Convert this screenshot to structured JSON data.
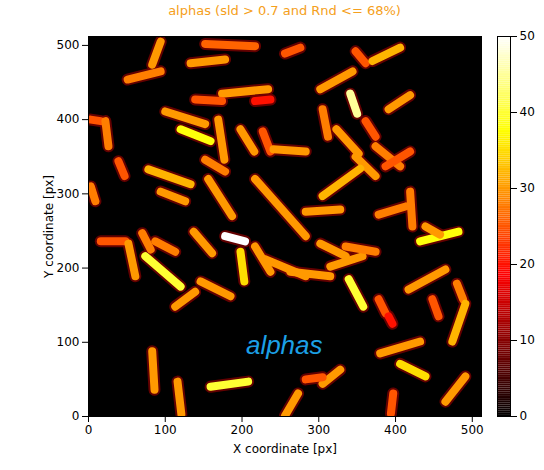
{
  "chart_data": {
    "type": "heatmap",
    "title": "alphas (sld > 0.7 and Rnd <= 68%)",
    "xlabel": "X coordinate [px]",
    "ylabel": "Y coordinate [px]",
    "xlim": [
      0,
      512
    ],
    "ylim": [
      0,
      512
    ],
    "xticks": [
      0,
      100,
      200,
      300,
      400,
      500
    ],
    "yticks": [
      0,
      100,
      200,
      300,
      400,
      500
    ],
    "colorbar": {
      "range": [
        0,
        50
      ],
      "ticks": [
        0,
        10,
        20,
        30,
        40,
        50
      ]
    },
    "annotations": [
      {
        "text": "alphas",
        "x": 255,
        "y": 95,
        "color": "#1ca0e6"
      }
    ],
    "tracks": [
      {
        "x1": 94,
        "y1": 505,
        "x2": 83,
        "y2": 474,
        "value": 30
      },
      {
        "x1": 51,
        "y1": 454,
        "x2": 94,
        "y2": 465,
        "value": 28
      },
      {
        "x1": 133,
        "y1": 476,
        "x2": 178,
        "y2": 481,
        "value": 30
      },
      {
        "x1": 152,
        "y1": 502,
        "x2": 217,
        "y2": 499,
        "value": 26
      },
      {
        "x1": 256,
        "y1": 489,
        "x2": 276,
        "y2": 497,
        "value": 25
      },
      {
        "x1": 348,
        "y1": 492,
        "x2": 361,
        "y2": 476,
        "value": 25
      },
      {
        "x1": 370,
        "y1": 479,
        "x2": 406,
        "y2": 497,
        "value": 32
      },
      {
        "x1": 302,
        "y1": 441,
        "x2": 344,
        "y2": 465,
        "value": 30
      },
      {
        "x1": 174,
        "y1": 435,
        "x2": 234,
        "y2": 441,
        "value": 30
      },
      {
        "x1": 139,
        "y1": 427,
        "x2": 174,
        "y2": 425,
        "value": 25
      },
      {
        "x1": 217,
        "y1": 425,
        "x2": 237,
        "y2": 427,
        "value": 20
      },
      {
        "x1": 391,
        "y1": 414,
        "x2": 419,
        "y2": 433,
        "value": 30
      },
      {
        "x1": 341,
        "y1": 435,
        "x2": 350,
        "y2": 408,
        "value": 45
      },
      {
        "x1": 3,
        "y1": 400,
        "x2": 16,
        "y2": 398,
        "value": 25
      },
      {
        "x1": 22,
        "y1": 398,
        "x2": 26,
        "y2": 364,
        "value": 28
      },
      {
        "x1": 100,
        "y1": 411,
        "x2": 152,
        "y2": 394,
        "value": 30
      },
      {
        "x1": 120,
        "y1": 387,
        "x2": 159,
        "y2": 371,
        "value": 38
      },
      {
        "x1": 169,
        "y1": 400,
        "x2": 177,
        "y2": 346,
        "value": 30
      },
      {
        "x1": 198,
        "y1": 387,
        "x2": 216,
        "y2": 357,
        "value": 30
      },
      {
        "x1": 227,
        "y1": 384,
        "x2": 237,
        "y2": 357,
        "value": 25
      },
      {
        "x1": 241,
        "y1": 360,
        "x2": 283,
        "y2": 357,
        "value": 30
      },
      {
        "x1": 305,
        "y1": 414,
        "x2": 312,
        "y2": 377,
        "value": 28
      },
      {
        "x1": 323,
        "y1": 387,
        "x2": 352,
        "y2": 354,
        "value": 30
      },
      {
        "x1": 361,
        "y1": 398,
        "x2": 374,
        "y2": 377,
        "value": 25
      },
      {
        "x1": 374,
        "y1": 364,
        "x2": 406,
        "y2": 337,
        "value": 28
      },
      {
        "x1": 348,
        "y1": 350,
        "x2": 374,
        "y2": 324,
        "value": 30
      },
      {
        "x1": 387,
        "y1": 337,
        "x2": 419,
        "y2": 357,
        "value": 25
      },
      {
        "x1": 3,
        "y1": 310,
        "x2": 9,
        "y2": 290,
        "value": 28
      },
      {
        "x1": 39,
        "y1": 344,
        "x2": 47,
        "y2": 324,
        "value": 25
      },
      {
        "x1": 78,
        "y1": 333,
        "x2": 133,
        "y2": 313,
        "value": 32
      },
      {
        "x1": 94,
        "y1": 303,
        "x2": 126,
        "y2": 290,
        "value": 30
      },
      {
        "x1": 156,
        "y1": 320,
        "x2": 187,
        "y2": 270,
        "value": 30
      },
      {
        "x1": 152,
        "y1": 346,
        "x2": 178,
        "y2": 330,
        "value": 28
      },
      {
        "x1": 217,
        "y1": 320,
        "x2": 283,
        "y2": 243,
        "value": 30
      },
      {
        "x1": 283,
        "y1": 276,
        "x2": 328,
        "y2": 279,
        "value": 30
      },
      {
        "x1": 305,
        "y1": 297,
        "x2": 354,
        "y2": 334,
        "value": 32
      },
      {
        "x1": 378,
        "y1": 272,
        "x2": 413,
        "y2": 283,
        "value": 28
      },
      {
        "x1": 419,
        "y1": 303,
        "x2": 422,
        "y2": 256,
        "value": 28
      },
      {
        "x1": 432,
        "y1": 236,
        "x2": 482,
        "y2": 249,
        "value": 38
      },
      {
        "x1": 439,
        "y1": 256,
        "x2": 458,
        "y2": 245,
        "value": 30
      },
      {
        "x1": 16,
        "y1": 236,
        "x2": 48,
        "y2": 236,
        "value": 25
      },
      {
        "x1": 52,
        "y1": 233,
        "x2": 61,
        "y2": 189,
        "value": 30
      },
      {
        "x1": 70,
        "y1": 247,
        "x2": 81,
        "y2": 225,
        "value": 28
      },
      {
        "x1": 74,
        "y1": 216,
        "x2": 120,
        "y2": 175,
        "value": 40
      },
      {
        "x1": 87,
        "y1": 236,
        "x2": 113,
        "y2": 222,
        "value": 28
      },
      {
        "x1": 137,
        "y1": 249,
        "x2": 161,
        "y2": 220,
        "value": 30
      },
      {
        "x1": 178,
        "y1": 243,
        "x2": 204,
        "y2": 236,
        "value": 50
      },
      {
        "x1": 198,
        "y1": 222,
        "x2": 203,
        "y2": 182,
        "value": 35
      },
      {
        "x1": 217,
        "y1": 229,
        "x2": 237,
        "y2": 195,
        "value": 30
      },
      {
        "x1": 230,
        "y1": 212,
        "x2": 283,
        "y2": 189,
        "value": 30
      },
      {
        "x1": 146,
        "y1": 182,
        "x2": 185,
        "y2": 162,
        "value": 30
      },
      {
        "x1": 113,
        "y1": 148,
        "x2": 139,
        "y2": 168,
        "value": 30
      },
      {
        "x1": 263,
        "y1": 195,
        "x2": 315,
        "y2": 189,
        "value": 30
      },
      {
        "x1": 302,
        "y1": 233,
        "x2": 335,
        "y2": 216,
        "value": 30
      },
      {
        "x1": 315,
        "y1": 202,
        "x2": 357,
        "y2": 216,
        "value": 30
      },
      {
        "x1": 339,
        "y1": 185,
        "x2": 358,
        "y2": 148,
        "value": 40
      },
      {
        "x1": 335,
        "y1": 229,
        "x2": 374,
        "y2": 222,
        "value": 28
      },
      {
        "x1": 378,
        "y1": 158,
        "x2": 387,
        "y2": 139,
        "value": 25
      },
      {
        "x1": 391,
        "y1": 135,
        "x2": 396,
        "y2": 125,
        "value": 20
      },
      {
        "x1": 417,
        "y1": 171,
        "x2": 465,
        "y2": 198,
        "value": 30
      },
      {
        "x1": 448,
        "y1": 158,
        "x2": 456,
        "y2": 135,
        "value": 25
      },
      {
        "x1": 480,
        "y1": 179,
        "x2": 488,
        "y2": 158,
        "value": 28
      },
      {
        "x1": 491,
        "y1": 152,
        "x2": 474,
        "y2": 101,
        "value": 32
      },
      {
        "x1": 380,
        "y1": 85,
        "x2": 432,
        "y2": 101,
        "value": 30
      },
      {
        "x1": 406,
        "y1": 71,
        "x2": 439,
        "y2": 54,
        "value": 35
      },
      {
        "x1": 305,
        "y1": 44,
        "x2": 328,
        "y2": 63,
        "value": 30
      },
      {
        "x1": 256,
        "y1": 1,
        "x2": 273,
        "y2": 31,
        "value": 30
      },
      {
        "x1": 283,
        "y1": 50,
        "x2": 305,
        "y2": 53,
        "value": 25
      },
      {
        "x1": 159,
        "y1": 40,
        "x2": 208,
        "y2": 47,
        "value": 40
      },
      {
        "x1": 83,
        "y1": 88,
        "x2": 86,
        "y2": 36,
        "value": 30
      },
      {
        "x1": 116,
        "y1": 47,
        "x2": 121,
        "y2": 3,
        "value": 30
      },
      {
        "x1": 397,
        "y1": 31,
        "x2": 394,
        "y2": 4,
        "value": 25
      },
      {
        "x1": 465,
        "y1": 20,
        "x2": 491,
        "y2": 54,
        "value": 30
      }
    ]
  }
}
